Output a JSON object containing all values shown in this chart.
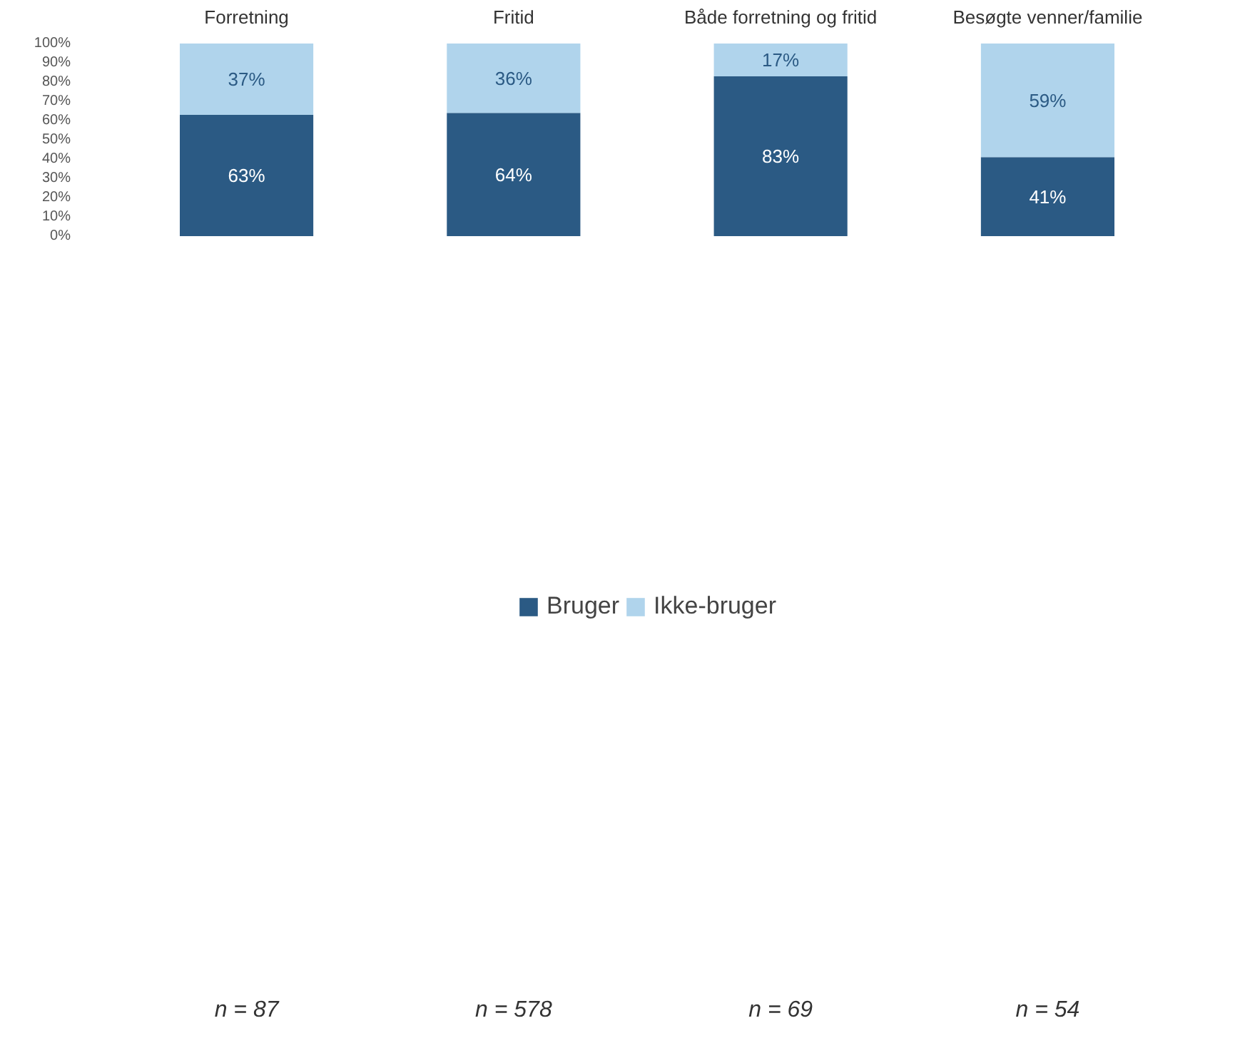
{
  "chart_data": {
    "type": "bar",
    "stacked": true,
    "categories": [
      "Forretning",
      "Fritid",
      "Både forretning og fritid",
      "Besøgte venner/familie"
    ],
    "series": [
      {
        "name": "Bruger",
        "color": "#2b5a84",
        "values": [
          63,
          64,
          83,
          41
        ],
        "value_labels": [
          "63%",
          "64%",
          "83%",
          "41%"
        ]
      },
      {
        "name": "Ikke-bruger",
        "color": "#b0d4ec",
        "values": [
          37,
          36,
          17,
          59
        ],
        "value_labels": [
          "37%",
          "36%",
          "17%",
          "59%"
        ]
      }
    ],
    "ylim": [
      0,
      100
    ],
    "yticks": [
      {
        "value": 0,
        "label": "0%"
      },
      {
        "value": 10,
        "label": "10%"
      },
      {
        "value": 20,
        "label": "20%"
      },
      {
        "value": 30,
        "label": "30%"
      },
      {
        "value": 40,
        "label": "40%"
      },
      {
        "value": 50,
        "label": "50%"
      },
      {
        "value": 60,
        "label": "60%"
      },
      {
        "value": 70,
        "label": "70%"
      },
      {
        "value": 80,
        "label": "80%"
      },
      {
        "value": 90,
        "label": "90%"
      },
      {
        "value": 100,
        "label": "100%"
      }
    ],
    "legend": "bottom",
    "grid": false,
    "annotations": [
      "n = 87",
      "n = 578",
      "n = 69",
      "n = 54"
    ]
  }
}
